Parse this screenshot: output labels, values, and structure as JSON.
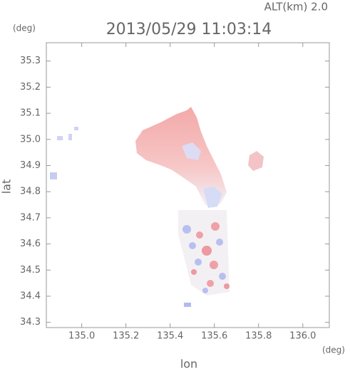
{
  "chart_data": {
    "type": "map",
    "title": "2013/05/29 11:03:14",
    "subtitle": "ALT(km) 2.0",
    "x_label": "lon",
    "y_label": "lat",
    "x_unit": "(deg)",
    "y_unit": "(deg)",
    "xlim": [
      134.84,
      136.12
    ],
    "ylim": [
      34.28,
      35.37
    ],
    "xticks": [
      {
        "value": 135,
        "label": "135.0"
      },
      135.2,
      135.4,
      135.6,
      135.8,
      {
        "value": 136,
        "label": "136.0"
      }
    ],
    "yticks": [
      34.3,
      34.4,
      34.5,
      34.6,
      34.7,
      34.8,
      34.9,
      {
        "value": 35,
        "label": "35.0"
      },
      35.1,
      35.2,
      35.3
    ]
  }
}
